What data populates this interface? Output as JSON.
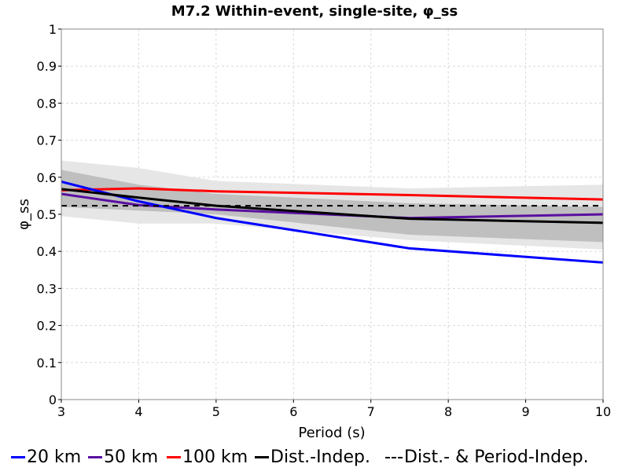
{
  "chart_data": {
    "type": "line",
    "title": "M7.2 Within-event, single-site, φ_ss",
    "xlabel": "Period (s)",
    "ylabel": "φ_ss",
    "xlim": [
      3,
      10
    ],
    "ylim": [
      0,
      1
    ],
    "xticks": [
      "3",
      "4",
      "5",
      "6",
      "7",
      "8",
      "9",
      "10"
    ],
    "yticks": [
      "0",
      "0.1",
      "0.2",
      "0.3",
      "0.4",
      "0.5",
      "0.6",
      "0.7",
      "0.8",
      "0.9",
      "1"
    ],
    "grid": true,
    "legend_position": "bottom",
    "bands": [
      {
        "color": "#e6e6e6",
        "x": [
          3,
          4,
          5,
          7.5,
          10
        ],
        "upper": [
          0.645,
          0.625,
          0.59,
          0.57,
          0.58
        ],
        "lower": [
          0.495,
          0.475,
          0.475,
          0.43,
          0.405
        ]
      },
      {
        "color": "#bfbfbf",
        "x": [
          3,
          4,
          5,
          7.5,
          10
        ],
        "upper": [
          0.62,
          0.58,
          0.555,
          0.53,
          0.52
        ],
        "lower": [
          0.52,
          0.51,
          0.5,
          0.445,
          0.425
        ]
      }
    ],
    "series": [
      {
        "name": "20 km",
        "color": "#0000ff",
        "dash": false,
        "x": [
          3,
          4,
          5,
          7.5,
          10
        ],
        "values": [
          0.588,
          0.535,
          0.49,
          0.408,
          0.37
        ]
      },
      {
        "name": "50 km",
        "color": "#5a0fa0",
        "dash": false,
        "x": [
          3,
          4,
          5,
          7.5,
          10
        ],
        "values": [
          0.555,
          0.525,
          0.513,
          0.49,
          0.5
        ]
      },
      {
        "name": "100 km",
        "color": "#ff0000",
        "dash": false,
        "x": [
          3,
          4,
          5,
          7.5,
          10
        ],
        "values": [
          0.565,
          0.57,
          0.562,
          0.552,
          0.54
        ]
      },
      {
        "name": "Dist.-Indep.",
        "color": "#000000",
        "dash": false,
        "x": [
          3,
          4,
          5,
          7.5,
          10
        ],
        "values": [
          0.568,
          0.545,
          0.523,
          0.488,
          0.477
        ]
      },
      {
        "name": "Dist.- & Period-Indep.",
        "color": "#000000",
        "dash": true,
        "x": [
          3,
          10
        ],
        "values": [
          0.523,
          0.523
        ]
      }
    ]
  }
}
